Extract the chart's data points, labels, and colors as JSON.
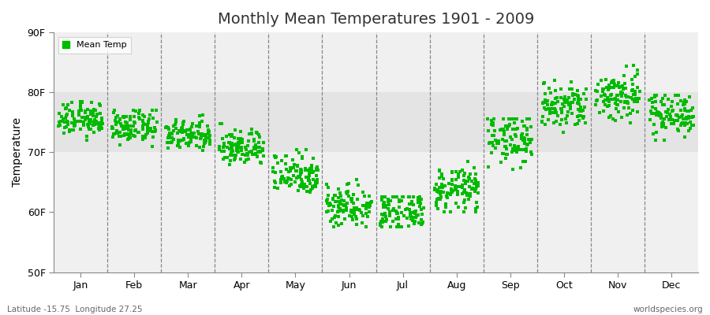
{
  "title": "Monthly Mean Temperatures 1901 - 2009",
  "ylabel": "Temperature",
  "ylim": [
    50,
    90
  ],
  "yticks": [
    50,
    60,
    70,
    80,
    90
  ],
  "ytick_labels": [
    "50F",
    "60F",
    "70F",
    "80F",
    "90F"
  ],
  "months": [
    "Jan",
    "Feb",
    "Mar",
    "Apr",
    "May",
    "Jun",
    "Jul",
    "Aug",
    "Sep",
    "Oct",
    "Nov",
    "Dec"
  ],
  "month_means": [
    75.5,
    74.2,
    72.8,
    70.8,
    66.5,
    61.2,
    60.0,
    63.8,
    72.5,
    77.5,
    79.5,
    76.5
  ],
  "month_stds": [
    1.4,
    1.3,
    1.3,
    1.5,
    1.8,
    1.8,
    1.6,
    1.8,
    2.2,
    2.0,
    2.2,
    1.8
  ],
  "month_ranges": [
    [
      72.0,
      78.5
    ],
    [
      71.0,
      77.0
    ],
    [
      70.0,
      79.5
    ],
    [
      68.0,
      75.0
    ],
    [
      63.0,
      70.5
    ],
    [
      57.5,
      65.5
    ],
    [
      57.5,
      62.5
    ],
    [
      60.0,
      68.5
    ],
    [
      67.0,
      75.5
    ],
    [
      73.0,
      82.5
    ],
    [
      74.0,
      84.5
    ],
    [
      72.0,
      79.5
    ]
  ],
  "n_years": 109,
  "dot_color": "#00bb00",
  "dot_size": 5,
  "bg_color": "#ffffff",
  "plot_bg_color": "#f0f0f0",
  "band_color": "#e4e4e4",
  "title_fontsize": 14,
  "axis_label_fontsize": 10,
  "tick_fontsize": 9,
  "legend_label": "Mean Temp",
  "footer_left": "Latitude -15.75  Longitude 27.25",
  "footer_right": "worldspecies.org"
}
